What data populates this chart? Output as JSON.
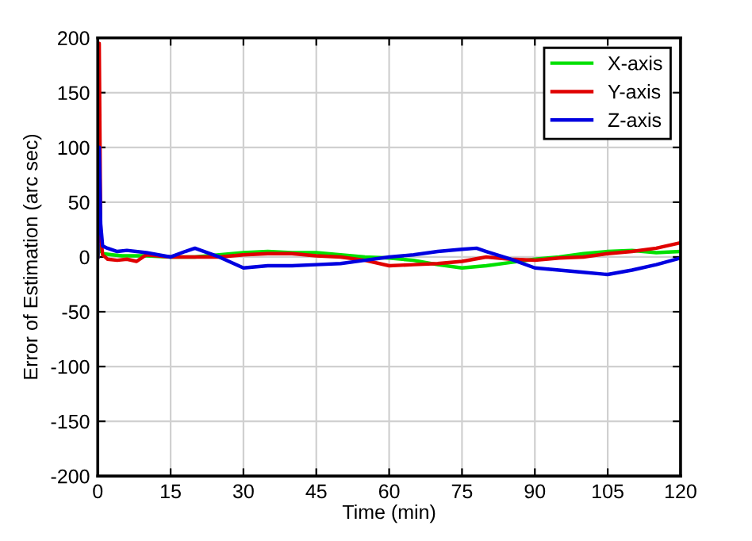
{
  "chart_data": {
    "type": "line",
    "xlabel": "Time (min)",
    "ylabel": "Error of Estimation (arc sec)",
    "xlim": [
      0,
      120
    ],
    "ylim": [
      -200,
      200
    ],
    "xticks": [
      0,
      15,
      30,
      45,
      60,
      75,
      90,
      105,
      120
    ],
    "yticks": [
      -200,
      -150,
      -100,
      -50,
      0,
      50,
      100,
      150,
      200
    ],
    "grid": true,
    "legend": "top right",
    "line_style": "solid",
    "marker": "none",
    "series": [
      {
        "name": "X-axis",
        "color": "#00e000",
        "x": [
          0,
          0.3,
          1,
          3,
          5,
          10,
          15,
          20,
          25,
          30,
          35,
          40,
          45,
          50,
          55,
          60,
          65,
          70,
          75,
          80,
          85,
          90,
          95,
          100,
          105,
          110,
          115,
          120
        ],
        "values": [
          0,
          10,
          3,
          2,
          1,
          1,
          0,
          0,
          2,
          4,
          5,
          4,
          4,
          2,
          0,
          -1,
          -3,
          -7,
          -10,
          -8,
          -5,
          -2,
          0,
          3,
          5,
          6,
          4,
          5
        ]
      },
      {
        "name": "Y-axis",
        "color": "#e00000",
        "x": [
          0,
          0.3,
          0.6,
          1,
          2,
          4,
          6,
          8,
          10,
          15,
          20,
          25,
          30,
          35,
          40,
          45,
          50,
          55,
          60,
          65,
          70,
          75,
          80,
          85,
          90,
          95,
          100,
          105,
          110,
          115,
          120
        ],
        "values": [
          0,
          195,
          20,
          2,
          -2,
          -3,
          -2,
          -4,
          2,
          0,
          0,
          0,
          2,
          3,
          3,
          1,
          0,
          -3,
          -8,
          -7,
          -6,
          -4,
          0,
          -2,
          -3,
          -1,
          0,
          3,
          5,
          8,
          13
        ]
      },
      {
        "name": "Z-axis",
        "color": "#0000e0",
        "x": [
          0,
          0.3,
          0.6,
          1,
          2,
          4,
          6,
          10,
          15,
          18,
          20,
          25,
          30,
          35,
          40,
          45,
          50,
          55,
          60,
          65,
          70,
          75,
          78,
          80,
          85,
          90,
          95,
          100,
          105,
          110,
          115,
          120
        ],
        "values": [
          0,
          100,
          30,
          10,
          8,
          5,
          6,
          4,
          0,
          5,
          8,
          0,
          -10,
          -8,
          -8,
          -7,
          -6,
          -3,
          0,
          2,
          5,
          7,
          8,
          5,
          -2,
          -10,
          -12,
          -14,
          -16,
          -12,
          -7,
          -1
        ]
      }
    ]
  }
}
